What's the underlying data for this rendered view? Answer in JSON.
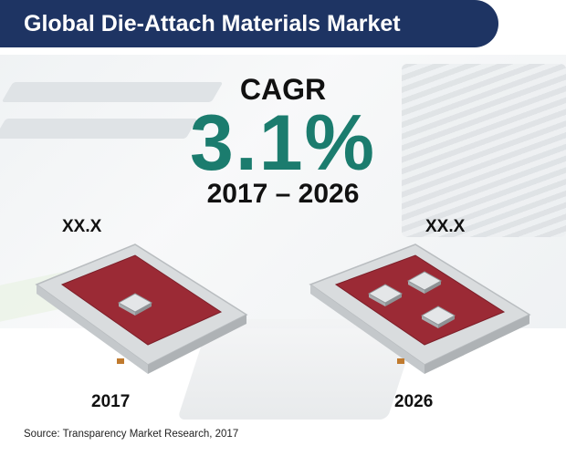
{
  "title": "Global Die-Attach Materials Market",
  "cagr": {
    "label": "CAGR",
    "value": "3.1%",
    "period": "2017 – 2026"
  },
  "source": "Source: Transparency Market Research, 2017",
  "chart_data": {
    "type": "other",
    "title": "Global Die-Attach Materials Market",
    "categories": [
      "2017",
      "2026"
    ],
    "value_labels": [
      "XX.X",
      "XX.X"
    ],
    "cagr": "3.1%",
    "period": "2017 – 2026",
    "die_counts": [
      1,
      3
    ],
    "colors": {
      "banner": "#1e3463",
      "cagr": "#1b7c6e",
      "substrate": "#9b2a35"
    }
  }
}
